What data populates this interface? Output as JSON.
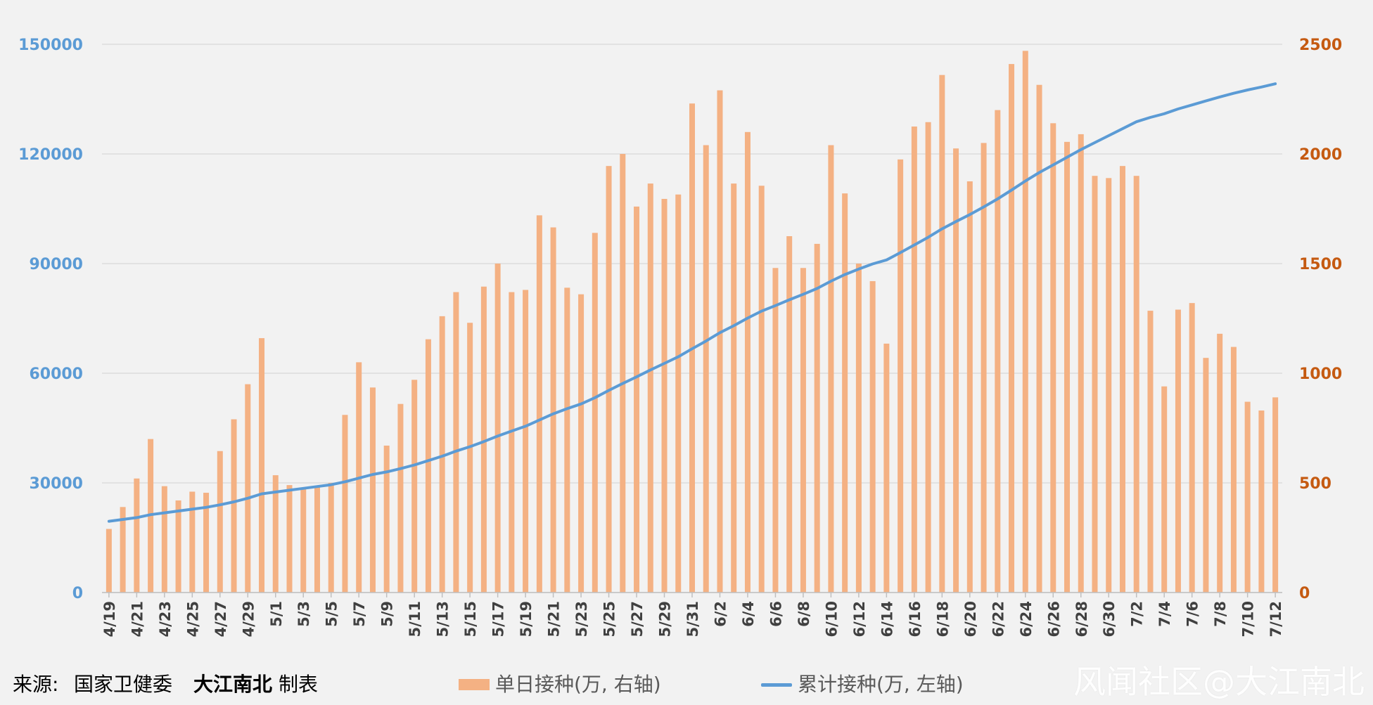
{
  "colors": {
    "bar": "#f4b183",
    "line": "#5b9bd5",
    "left_axis": "#5b9bd5",
    "right_axis": "#c55a11",
    "grid": "#d9d9d9",
    "x_tick": "#404040"
  },
  "footer": {
    "source_label": "来源:",
    "source_org": "国家卫健委",
    "source_author": "大江南北",
    "source_suffix": "制表"
  },
  "watermark": "风闻社区@大江南北",
  "chart_data": {
    "type": "bar",
    "categories": [
      "4/19",
      "4/20",
      "4/21",
      "4/22",
      "4/23",
      "4/24",
      "4/25",
      "4/26",
      "4/27",
      "4/28",
      "4/29",
      "4/30",
      "5/1",
      "5/2",
      "5/3",
      "5/4",
      "5/5",
      "5/6",
      "5/7",
      "5/8",
      "5/9",
      "5/10",
      "5/11",
      "5/12",
      "5/13",
      "5/14",
      "5/15",
      "5/16",
      "5/17",
      "5/18",
      "5/19",
      "5/20",
      "5/21",
      "5/22",
      "5/23",
      "5/24",
      "5/25",
      "5/26",
      "5/27",
      "5/28",
      "5/29",
      "5/30",
      "5/31",
      "6/1",
      "6/2",
      "6/3",
      "6/4",
      "6/5",
      "6/6",
      "6/7",
      "6/8",
      "6/9",
      "6/10",
      "6/11",
      "6/12",
      "6/13",
      "6/14",
      "6/15",
      "6/16",
      "6/17",
      "6/18",
      "6/19",
      "6/20",
      "6/21",
      "6/22",
      "6/23",
      "6/24",
      "6/25",
      "6/26",
      "6/27",
      "6/28",
      "6/29",
      "6/30",
      "7/1",
      "7/2",
      "7/3",
      "7/4",
      "7/5",
      "7/6",
      "7/7",
      "7/8",
      "7/9",
      "7/10",
      "7/11",
      "7/12"
    ],
    "x_tick_labels": [
      "4/19",
      "4/21",
      "4/23",
      "4/25",
      "4/27",
      "4/29",
      "5/1",
      "5/3",
      "5/5",
      "5/7",
      "5/9",
      "5/11",
      "5/13",
      "5/15",
      "5/17",
      "5/19",
      "5/21",
      "5/23",
      "5/25",
      "5/27",
      "5/29",
      "5/31",
      "6/2",
      "6/4",
      "6/6",
      "6/8",
      "6/10",
      "6/12",
      "6/14",
      "6/16",
      "6/18",
      "6/20",
      "6/22",
      "6/24",
      "6/26",
      "6/28",
      "6/30",
      "7/2",
      "7/4",
      "7/6",
      "7/8",
      "7/10",
      "7/12"
    ],
    "series": [
      {
        "name": "单日接种(万, 右轴)",
        "type": "bar",
        "axis": "right",
        "values": [
          290,
          390,
          520,
          700,
          485,
          420,
          460,
          455,
          645,
          790,
          950,
          1160,
          535,
          490,
          475,
          480,
          500,
          810,
          1050,
          935,
          670,
          860,
          970,
          1155,
          1260,
          1370,
          1230,
          1395,
          1500,
          1370,
          1380,
          1720,
          1665,
          1390,
          1360,
          1640,
          1945,
          2000,
          1760,
          1865,
          1795,
          1815,
          2230,
          2040,
          2290,
          1865,
          2100,
          1855,
          1480,
          1625,
          1480,
          1590,
          2040,
          1820,
          1500,
          1420,
          1135,
          1975,
          2125,
          2145,
          2360,
          2025,
          1875,
          2050,
          2200,
          2410,
          2470,
          2315,
          2140,
          2055,
          2090,
          1900,
          1890,
          1945,
          1900,
          1285,
          940,
          1290,
          1320,
          1070,
          1180,
          1120,
          870,
          830,
          890
        ]
      },
      {
        "name": "累计接种(万, 左轴)",
        "type": "line",
        "axis": "left",
        "values": [
          19500,
          20000,
          20500,
          21300,
          21800,
          22300,
          22800,
          23300,
          24000,
          24800,
          25800,
          27000,
          27500,
          28000,
          28500,
          29000,
          29500,
          30300,
          31300,
          32300,
          33000,
          33900,
          34900,
          36100,
          37300,
          38700,
          39900,
          41300,
          42800,
          44200,
          45500,
          47200,
          48900,
          50300,
          51600,
          53300,
          55300,
          57200,
          59000,
          60900,
          62700,
          64500,
          66700,
          68800,
          71100,
          73000,
          75100,
          77000,
          78500,
          80100,
          81600,
          83200,
          85200,
          87000,
          88500,
          89900,
          91000,
          93000,
          95100,
          97200,
          99500,
          101500,
          103400,
          105500,
          107700,
          110100,
          112600,
          114900,
          117000,
          119100,
          121200,
          123100,
          125000,
          126900,
          128800,
          130000,
          131000,
          132300,
          133400,
          134500,
          135600,
          136600,
          137500,
          138300,
          139200
        ]
      }
    ],
    "y_left": {
      "min": 0,
      "max": 150000,
      "ticks": [
        "0",
        "30000",
        "60000",
        "90000",
        "120000",
        "150000"
      ]
    },
    "y_right": {
      "min": 0,
      "max": 2500,
      "ticks": [
        "0",
        "500",
        "1000",
        "1500",
        "2000",
        "2500"
      ]
    },
    "grid": true,
    "legend_position": "bottom",
    "legend": {
      "bar_label": "单日接种(万, 右轴)",
      "line_label": "累计接种(万, 左轴)"
    }
  }
}
